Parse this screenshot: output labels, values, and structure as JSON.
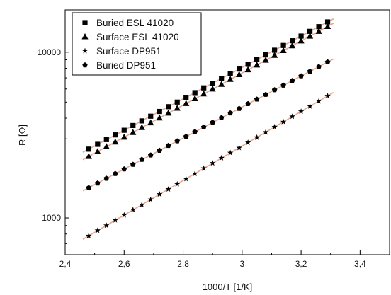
{
  "chart_data": {
    "type": "scatter",
    "title": "",
    "xlabel": "1000/T [1/K]",
    "ylabel": "R [Ω]",
    "xscale": "linear",
    "yscale": "log",
    "xlim": [
      2.4,
      3.5
    ],
    "ylim": [
      600,
      18000
    ],
    "x_ticks": [
      {
        "value": 2.4,
        "label": "2,4"
      },
      {
        "value": 2.6,
        "label": "2,6"
      },
      {
        "value": 2.8,
        "label": "2,8"
      },
      {
        "value": 3.0,
        "label": "3"
      },
      {
        "value": 3.2,
        "label": "3,2"
      },
      {
        "value": 3.4,
        "label": "3,4"
      }
    ],
    "y_ticks": [
      {
        "value": 1000,
        "label": "1000"
      },
      {
        "value": 10000,
        "label": "10000"
      }
    ],
    "grid": false,
    "legend_position": "top-left",
    "fit_line_color": "#e8a78e",
    "marker_color": "#000000",
    "series": [
      {
        "name": "Buried ESL 41020",
        "marker": "square",
        "x": [
          2.48,
          2.51,
          2.54,
          2.57,
          2.6,
          2.63,
          2.66,
          2.69,
          2.72,
          2.75,
          2.78,
          2.81,
          2.84,
          2.87,
          2.9,
          2.93,
          2.96,
          2.99,
          3.02,
          3.05,
          3.08,
          3.11,
          3.14,
          3.17,
          3.2,
          3.23,
          3.26,
          3.29
        ],
        "values": [
          2600,
          2780,
          2970,
          3170,
          3380,
          3610,
          3850,
          4110,
          4390,
          4690,
          5000,
          5340,
          5700,
          6090,
          6500,
          6940,
          7410,
          7910,
          8450,
          9020,
          9630,
          10280,
          10980,
          11720,
          12510,
          13360,
          14260,
          15230
        ]
      },
      {
        "name": "Surface ESL 41020",
        "marker": "triangle",
        "x": [
          2.48,
          2.51,
          2.54,
          2.57,
          2.6,
          2.63,
          2.66,
          2.69,
          2.72,
          2.75,
          2.78,
          2.81,
          2.84,
          2.87,
          2.9,
          2.93,
          2.96,
          2.99,
          3.02,
          3.05,
          3.08,
          3.11,
          3.14,
          3.17,
          3.2,
          3.23,
          3.26,
          3.29
        ],
        "values": [
          2350,
          2510,
          2690,
          2870,
          3070,
          3280,
          3510,
          3750,
          4010,
          4290,
          4590,
          4900,
          5240,
          5600,
          5990,
          6400,
          6850,
          7320,
          7830,
          8370,
          8950,
          9570,
          10230,
          10930,
          11690,
          12500,
          13360,
          14290
        ]
      },
      {
        "name": "Surface DP951",
        "marker": "star",
        "x": [
          2.48,
          2.51,
          2.54,
          2.57,
          2.6,
          2.63,
          2.66,
          2.69,
          2.72,
          2.75,
          2.78,
          2.81,
          2.84,
          2.87,
          2.9,
          2.93,
          2.96,
          2.99,
          3.02,
          3.05,
          3.08,
          3.11,
          3.14,
          3.17,
          3.2,
          3.23,
          3.26,
          3.29
        ],
        "values": [
          780,
          840,
          900,
          970,
          1040,
          1120,
          1200,
          1290,
          1390,
          1490,
          1600,
          1720,
          1850,
          1990,
          2140,
          2300,
          2470,
          2650,
          2850,
          3060,
          3290,
          3540,
          3800,
          4090,
          4390,
          4720,
          5070,
          5450
        ]
      },
      {
        "name": "Buried DP951",
        "marker": "pentagon",
        "x": [
          2.48,
          2.51,
          2.54,
          2.57,
          2.6,
          2.63,
          2.66,
          2.69,
          2.72,
          2.75,
          2.78,
          2.81,
          2.84,
          2.87,
          2.9,
          2.93,
          2.96,
          2.99,
          3.02,
          3.05,
          3.08,
          3.11,
          3.14,
          3.17,
          3.2,
          3.23,
          3.26,
          3.29
        ],
        "values": [
          1520,
          1620,
          1730,
          1850,
          1970,
          2100,
          2250,
          2390,
          2550,
          2730,
          2910,
          3100,
          3310,
          3530,
          3770,
          4020,
          4290,
          4570,
          4880,
          5200,
          5550,
          5920,
          6310,
          6730,
          7180,
          7660,
          8170,
          8720
        ]
      }
    ]
  }
}
